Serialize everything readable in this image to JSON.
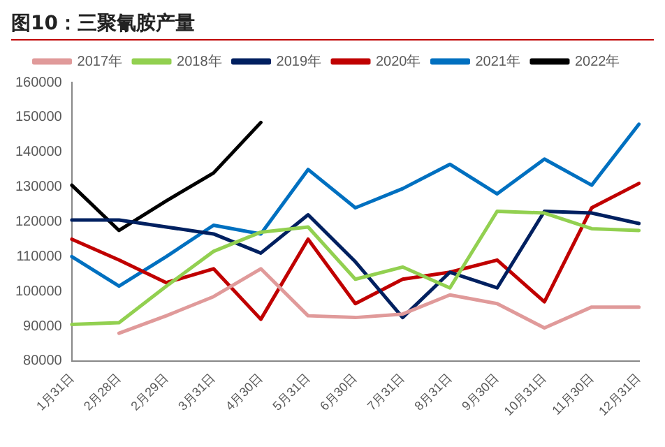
{
  "chart_data": {
    "type": "line",
    "title": "图10：三聚氰胺产量",
    "categories": [
      "1月31日",
      "2月28日",
      "2月29日",
      "3月31日",
      "4月30日",
      "5月31日",
      "6月30日",
      "7月31日",
      "8月31日",
      "9月30日",
      "10月31日",
      "11月30日",
      "12月31日"
    ],
    "series": [
      {
        "name": "2017年",
        "color": "#e09a9a",
        "values": [
          null,
          88000,
          93000,
          98500,
          106500,
          93000,
          92500,
          93500,
          99000,
          96500,
          89500,
          95500,
          95500
        ]
      },
      {
        "name": "2018年",
        "color": "#92d050",
        "values": [
          90500,
          91000,
          101500,
          111500,
          117000,
          118500,
          103500,
          107000,
          101000,
          123000,
          122500,
          118000,
          117500
        ]
      },
      {
        "name": "2019年",
        "color": "#002060",
        "values": [
          120500,
          120500,
          118500,
          116500,
          111000,
          122000,
          108500,
          92500,
          105500,
          101000,
          123000,
          122500,
          119500
        ]
      },
      {
        "name": "2020年",
        "color": "#c00000",
        "values": [
          115000,
          109000,
          102500,
          106500,
          92000,
          115000,
          96500,
          103500,
          105500,
          109000,
          97000,
          124000,
          131000
        ]
      },
      {
        "name": "2021年",
        "color": "#0070c0",
        "values": [
          110000,
          101500,
          110000,
          119000,
          116500,
          135000,
          124000,
          129500,
          136500,
          128000,
          138000,
          130500,
          148000
        ]
      },
      {
        "name": "2022年",
        "color": "#000000",
        "values": [
          130500,
          117500,
          126000,
          134000,
          148500,
          null,
          null,
          null,
          null,
          null,
          null,
          null,
          null
        ]
      }
    ],
    "ylim": [
      80000,
      160000
    ],
    "yticks": [
      80000,
      90000,
      100000,
      110000,
      120000,
      130000,
      140000,
      150000,
      160000
    ],
    "grid": false,
    "legend": "top",
    "marker": "none",
    "line_style": "solid"
  }
}
